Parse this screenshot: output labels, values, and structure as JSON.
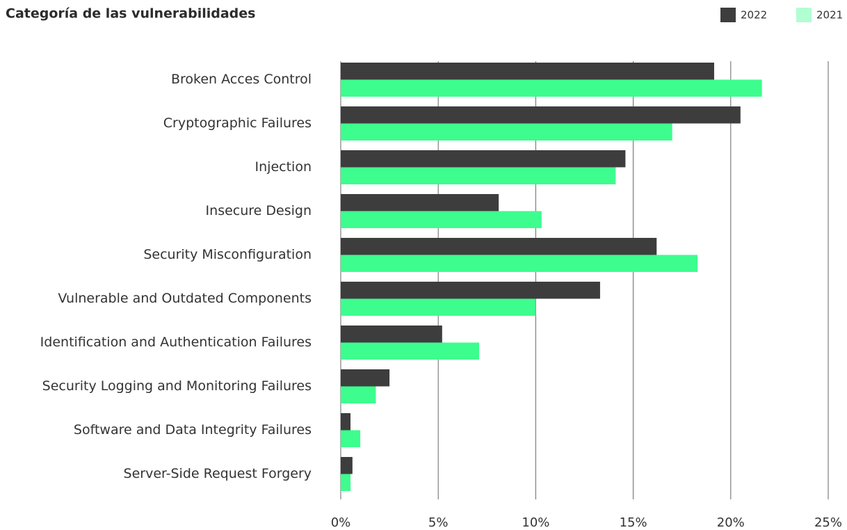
{
  "chart_data": {
    "type": "barh",
    "title": "Categoría de las vulnerabilidades",
    "categories": [
      "Broken Acces Control",
      "Cryptographic Failures",
      "Injection",
      "Insecure Design",
      "Security Misconfiguration",
      "Vulnerable and Outdated Components",
      "Identification and Authentication Failures",
      "Security Logging and Monitoring Failures",
      "Software and Data Integrity Failures",
      "Server-Side Request Forgery"
    ],
    "series": [
      {
        "name": "2022",
        "color": "#3d3d3d",
        "values": [
          19.15,
          20.5,
          14.6,
          8.1,
          16.2,
          13.3,
          5.2,
          2.5,
          0.5,
          0.6
        ]
      },
      {
        "name": "2021",
        "color": "#3dfd8e",
        "values": [
          21.6,
          17.0,
          14.1,
          10.3,
          18.3,
          10.0,
          7.1,
          1.8,
          1.0,
          0.5
        ]
      }
    ],
    "xlim": [
      0,
      25
    ],
    "xticks": [
      {
        "value": 0,
        "label": "0%"
      },
      {
        "value": 5,
        "label": "5%"
      },
      {
        "value": 10,
        "label": "10%"
      },
      {
        "value": 15,
        "label": "15%"
      },
      {
        "value": 20,
        "label": "20%"
      },
      {
        "value": 25,
        "label": "25%"
      }
    ],
    "grid": true,
    "legend": "top-right"
  }
}
